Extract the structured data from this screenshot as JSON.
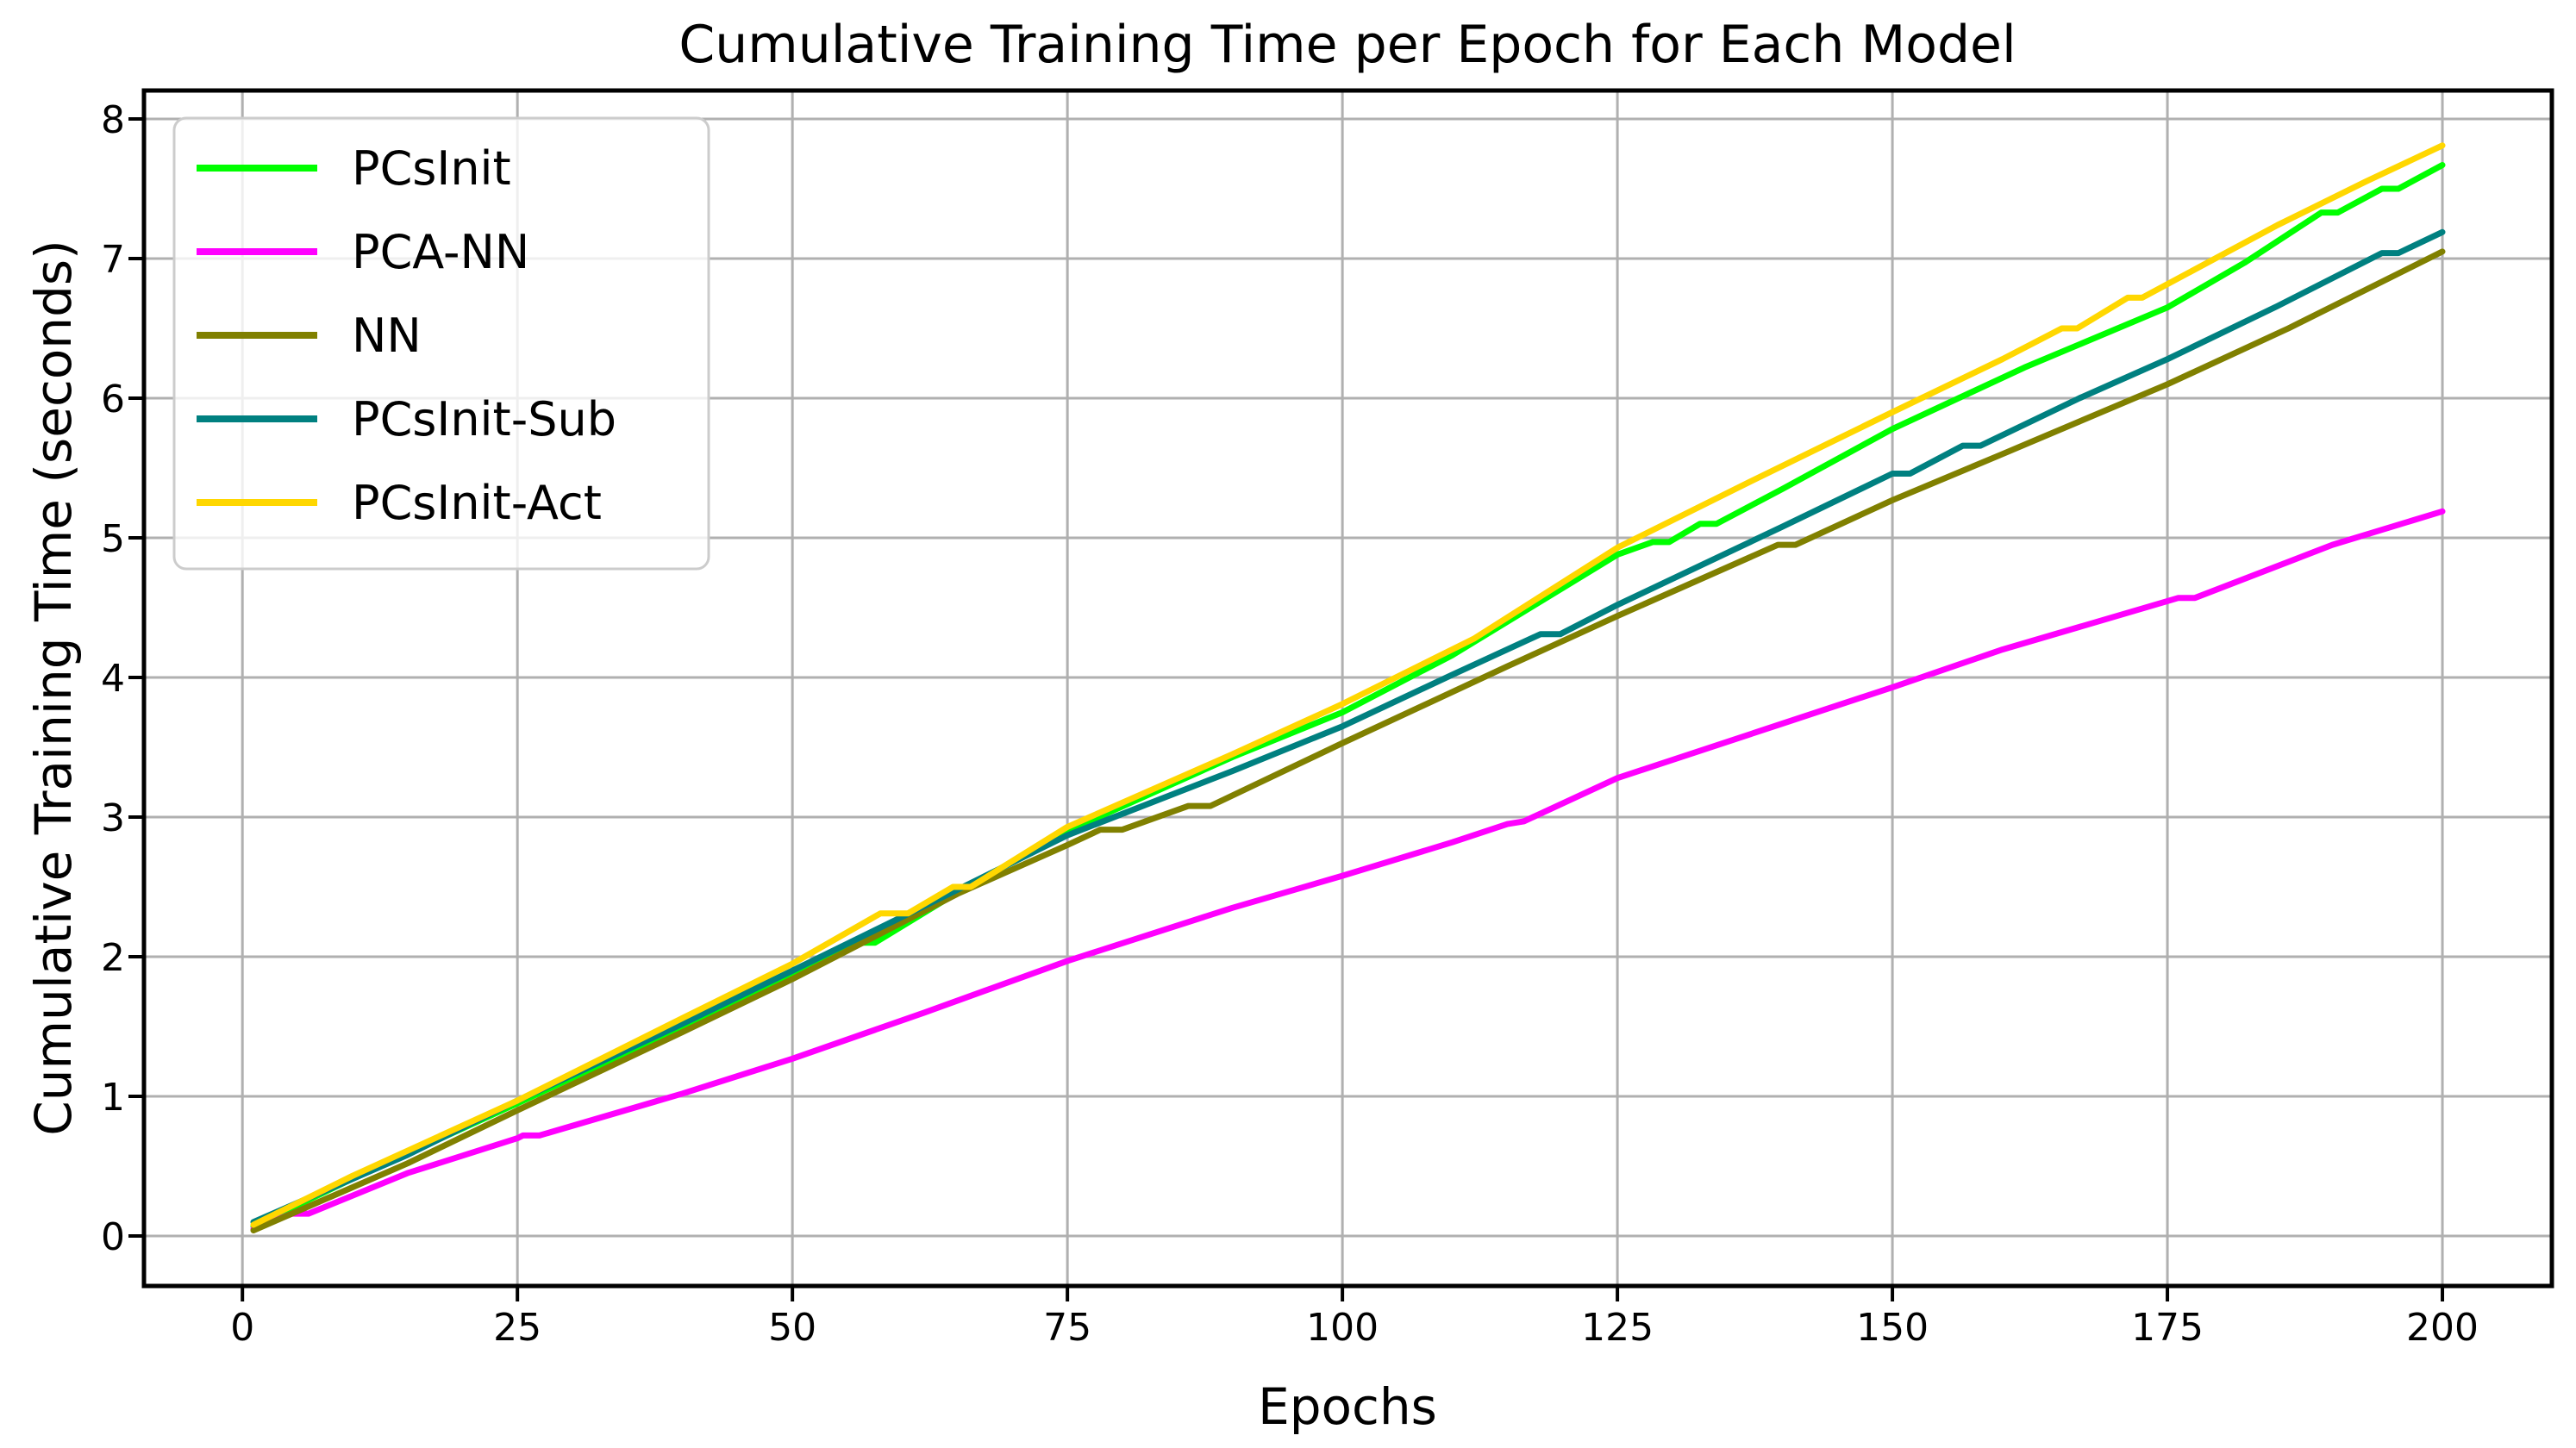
{
  "figure": {
    "title": "Cumulative Training Time per Epoch for Each Model",
    "xlabel": "Epochs",
    "ylabel": "Cumulative Training Time (seconds)"
  },
  "chart_data": {
    "type": "line",
    "title": "Cumulative Training Time per Epoch for Each Model",
    "xlabel": "Epochs",
    "ylabel": "Cumulative Training Time (seconds)",
    "xlim": [
      -8.95,
      209.95
    ],
    "ylim": [
      -0.358,
      8.204
    ],
    "xticks": [
      0,
      25,
      50,
      75,
      100,
      125,
      150,
      175,
      200
    ],
    "yticks": [
      0,
      1,
      2,
      3,
      4,
      5,
      6,
      7,
      8
    ],
    "grid": true,
    "grid_color": "#b0b0b0",
    "legend_position": "upper left",
    "series": [
      {
        "name": "PCsInit",
        "color": "#00FF00",
        "points": [
          [
            1,
            0.07
          ],
          [
            10,
            0.41
          ],
          [
            25,
            0.95
          ],
          [
            40,
            1.5
          ],
          [
            50,
            1.87
          ],
          [
            56,
            2.1
          ],
          [
            57.5,
            2.1
          ],
          [
            65,
            2.46
          ],
          [
            75,
            2.9
          ],
          [
            90,
            3.43
          ],
          [
            100,
            3.75
          ],
          [
            110,
            4.16
          ],
          [
            125,
            4.88
          ],
          [
            128.2,
            4.97
          ],
          [
            129.7,
            4.97
          ],
          [
            132.5,
            5.1
          ],
          [
            134,
            5.1
          ],
          [
            140,
            5.35
          ],
          [
            150,
            5.78
          ],
          [
            162,
            6.22
          ],
          [
            175,
            6.65
          ],
          [
            182,
            6.97
          ],
          [
            189,
            7.33
          ],
          [
            190.5,
            7.33
          ],
          [
            194.5,
            7.5
          ],
          [
            196,
            7.5
          ],
          [
            200,
            7.67
          ]
        ]
      },
      {
        "name": "PCA-NN",
        "color": "#FF00FF",
        "points": [
          [
            1,
            0.05
          ],
          [
            4.5,
            0.16
          ],
          [
            6,
            0.16
          ],
          [
            15,
            0.45
          ],
          [
            25,
            0.7
          ],
          [
            25.5,
            0.72
          ],
          [
            27,
            0.72
          ],
          [
            40,
            1.02
          ],
          [
            50,
            1.27
          ],
          [
            62,
            1.6
          ],
          [
            75,
            1.97
          ],
          [
            90,
            2.35
          ],
          [
            100,
            2.58
          ],
          [
            110,
            2.82
          ],
          [
            115,
            2.95
          ],
          [
            116.5,
            2.97
          ],
          [
            125,
            3.28
          ],
          [
            140,
            3.67
          ],
          [
            150,
            3.93
          ],
          [
            160,
            4.2
          ],
          [
            176,
            4.57
          ],
          [
            177.5,
            4.57
          ],
          [
            190,
            4.95
          ],
          [
            200,
            5.19
          ]
        ]
      },
      {
        "name": "NN",
        "color": "#808000",
        "points": [
          [
            1,
            0.04
          ],
          [
            15,
            0.52
          ],
          [
            25,
            0.9
          ],
          [
            40,
            1.46
          ],
          [
            50,
            1.84
          ],
          [
            65,
            2.45
          ],
          [
            75,
            2.8
          ],
          [
            78,
            2.91
          ],
          [
            80,
            2.91
          ],
          [
            86,
            3.08
          ],
          [
            88,
            3.08
          ],
          [
            100,
            3.53
          ],
          [
            115,
            4.08
          ],
          [
            125,
            4.44
          ],
          [
            139.6,
            4.95
          ],
          [
            141.2,
            4.95
          ],
          [
            150,
            5.27
          ],
          [
            160,
            5.6
          ],
          [
            175,
            6.1
          ],
          [
            186,
            6.5
          ],
          [
            200,
            7.05
          ]
        ]
      },
      {
        "name": "PCsInit-Sub",
        "color": "#008080",
        "points": [
          [
            1,
            0.1
          ],
          [
            15,
            0.58
          ],
          [
            25,
            0.97
          ],
          [
            40,
            1.52
          ],
          [
            50,
            1.9
          ],
          [
            65,
            2.48
          ],
          [
            75,
            2.87
          ],
          [
            90,
            3.33
          ],
          [
            100,
            3.65
          ],
          [
            110,
            4.02
          ],
          [
            118,
            4.31
          ],
          [
            119.8,
            4.31
          ],
          [
            125,
            4.52
          ],
          [
            140,
            5.08
          ],
          [
            150,
            5.46
          ],
          [
            151.6,
            5.46
          ],
          [
            156.4,
            5.66
          ],
          [
            158,
            5.66
          ],
          [
            167,
            6.0
          ],
          [
            175,
            6.28
          ],
          [
            185,
            6.66
          ],
          [
            194.5,
            7.04
          ],
          [
            196,
            7.04
          ],
          [
            200,
            7.19
          ]
        ]
      },
      {
        "name": "PCsInit-Act",
        "color": "#FFD700",
        "points": [
          [
            1,
            0.08
          ],
          [
            10,
            0.43
          ],
          [
            25,
            0.97
          ],
          [
            40,
            1.56
          ],
          [
            50,
            1.95
          ],
          [
            58,
            2.31
          ],
          [
            60.5,
            2.31
          ],
          [
            64.6,
            2.5
          ],
          [
            66.2,
            2.5
          ],
          [
            75,
            2.93
          ],
          [
            90,
            3.45
          ],
          [
            100,
            3.81
          ],
          [
            112,
            4.28
          ],
          [
            125,
            4.93
          ],
          [
            137,
            5.4
          ],
          [
            150,
            5.9
          ],
          [
            160,
            6.28
          ],
          [
            165.4,
            6.5
          ],
          [
            166.8,
            6.5
          ],
          [
            171.4,
            6.72
          ],
          [
            172.7,
            6.72
          ],
          [
            185,
            7.24
          ],
          [
            193,
            7.55
          ],
          [
            200,
            7.81
          ]
        ]
      }
    ]
  }
}
